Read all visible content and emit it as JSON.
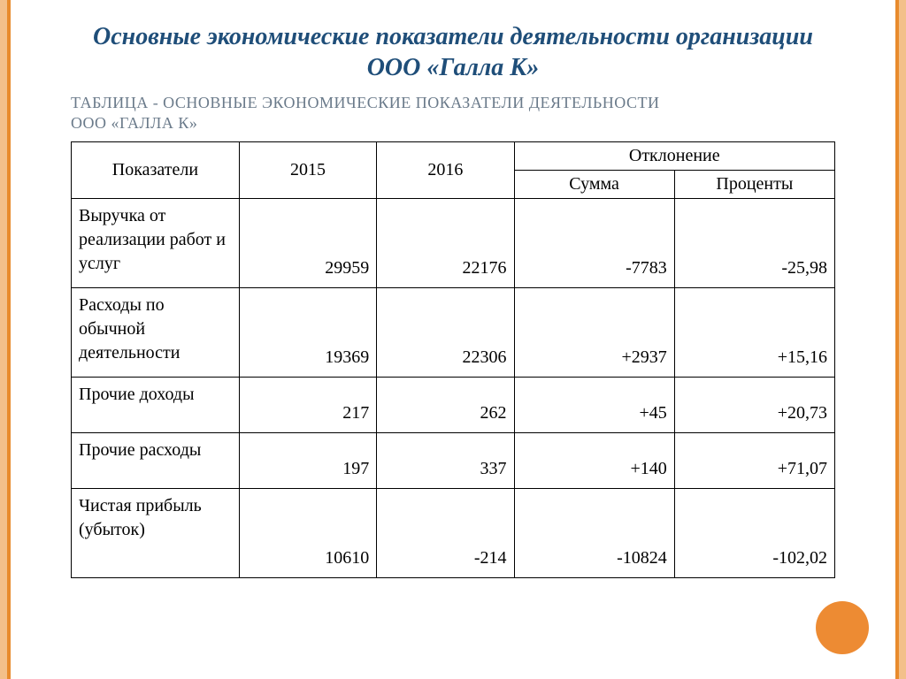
{
  "colors": {
    "title": "#1f4e79",
    "subtitle": "#6a7a8a",
    "border": "#000000",
    "text": "#000000",
    "edge_outer": "#f3c08a",
    "edge_inner": "#e88b2d",
    "circle": "#ed8b33"
  },
  "fonts": {
    "family": "Times New Roman",
    "title_size_pt": 22,
    "subtitle_size_pt": 14,
    "cell_size_pt": 15
  },
  "title": "Основные экономические показатели деятельности организации ООО «Галла К»",
  "subtitle_line1": "Таблица - Основные экономические показатели деятельности",
  "subtitle_line2": "ООО «Галла К»",
  "table": {
    "type": "table",
    "col_widths_pct": [
      22,
      18,
      18,
      21,
      21
    ],
    "header": {
      "c0": "Показатели",
      "c1": "2015",
      "c2": "2016",
      "dev": "Отклонение",
      "dev_sum": "Сумма",
      "dev_pct": "Проценты"
    },
    "rows": [
      {
        "label": "Выручка от реализации работ и услуг",
        "y2015": "29959",
        "y2016": "22176",
        "dsum": "-7783",
        "dpct": "-25,98",
        "h": "tall"
      },
      {
        "label": "Расходы по обычной деятельности",
        "y2015": "19369",
        "y2016": "22306",
        "dsum": "+2937",
        "dpct": "+15,16",
        "h": "tall"
      },
      {
        "label": "Прочие доходы",
        "y2015": "217",
        "y2016": "262",
        "dsum": "+45",
        "dpct": "+20,73",
        "h": "med"
      },
      {
        "label": "Прочие расходы",
        "y2015": "197",
        "y2016": "337",
        "dsum": "+140",
        "dpct": "+71,07",
        "h": "med"
      },
      {
        "label": "Чистая прибыль (убыток)",
        "y2015": "10610",
        "y2016": "-214",
        "dsum": "-10824",
        "dpct": "-102,02",
        "h": "tall"
      }
    ]
  }
}
